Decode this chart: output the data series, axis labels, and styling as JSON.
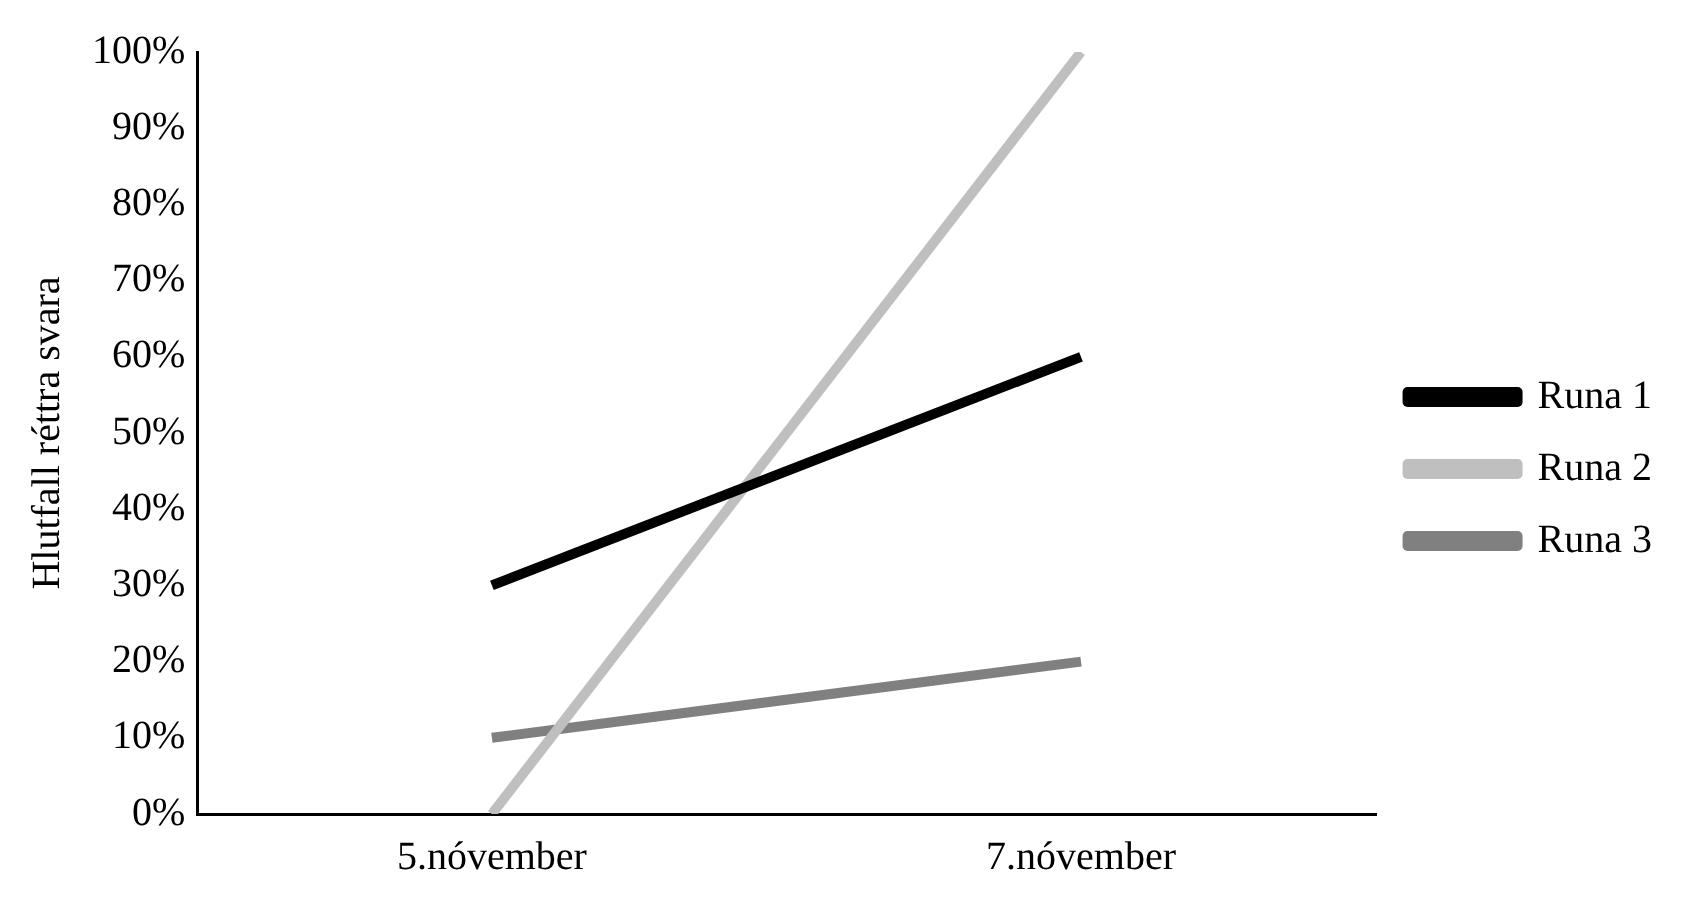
{
  "chart_data": {
    "type": "line",
    "ylabel": "Hlutfall réttra svara",
    "categories": [
      "5.nóvember",
      "7.nóvember"
    ],
    "series": [
      {
        "name": "Runa 1",
        "color": "#000000",
        "values": [
          30,
          60
        ]
      },
      {
        "name": "Runa 2",
        "color": "#bfbfbf",
        "values": [
          0,
          100
        ]
      },
      {
        "name": "Runa 3",
        "color": "#808080",
        "values": [
          10,
          20
        ]
      }
    ],
    "ylim": [
      0,
      100
    ],
    "yticks": [
      {
        "value": 0,
        "label": "0%"
      },
      {
        "value": 10,
        "label": "10%"
      },
      {
        "value": 20,
        "label": "20%"
      },
      {
        "value": 30,
        "label": "30%"
      },
      {
        "value": 40,
        "label": "40%"
      },
      {
        "value": 50,
        "label": "50%"
      },
      {
        "value": 60,
        "label": "60%"
      },
      {
        "value": 70,
        "label": "70%"
      },
      {
        "value": 80,
        "label": "80%"
      },
      {
        "value": 90,
        "label": "90%"
      },
      {
        "value": 100,
        "label": "100%"
      }
    ],
    "grid": false,
    "legend": "right",
    "marker": "none",
    "line_style": "solid"
  }
}
